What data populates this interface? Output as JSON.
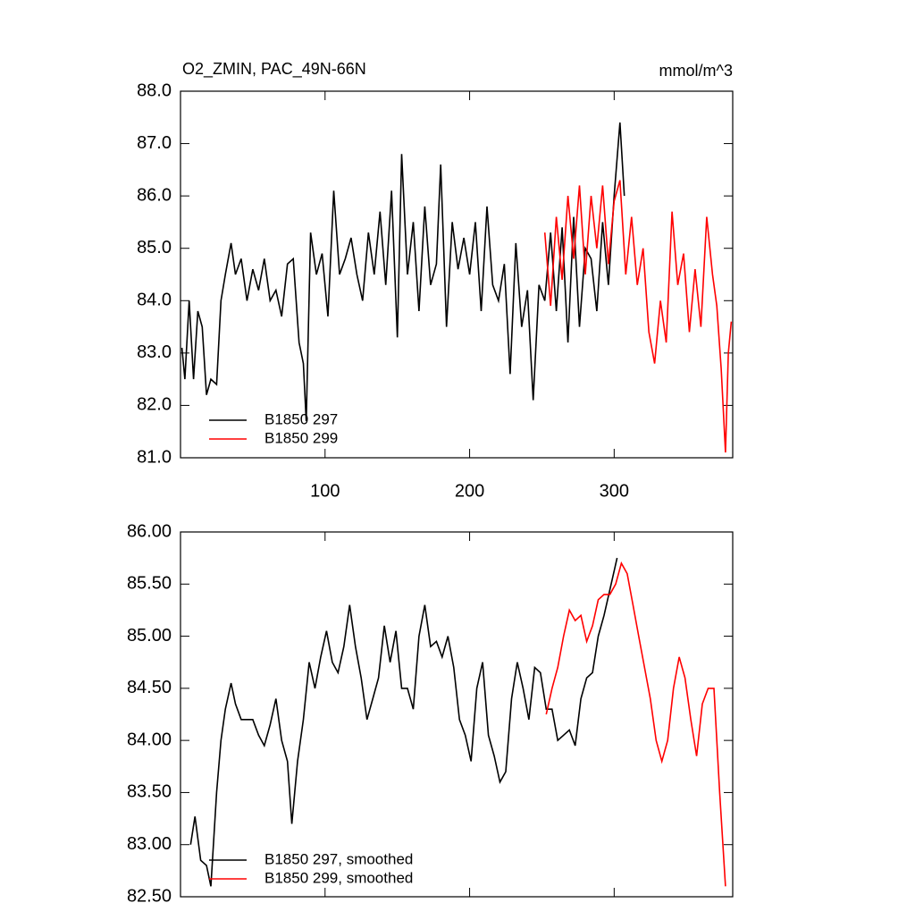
{
  "chart_data": [
    {
      "type": "line",
      "title": "O2_ZMIN, PAC_49N-66N",
      "units": "mmol/m^3",
      "xlim": [
        0,
        382
      ],
      "xticks": [
        100,
        200,
        300
      ],
      "xtick_labels": true,
      "ylim": [
        81,
        88
      ],
      "yticks": [
        {
          "value": 81,
          "label": "81.0"
        },
        {
          "value": 82,
          "label": "82.0"
        },
        {
          "value": 83,
          "label": "83.0"
        },
        {
          "value": 84,
          "label": "84.0"
        },
        {
          "value": 85,
          "label": "85.0"
        },
        {
          "value": 86,
          "label": "86.0"
        },
        {
          "value": 87,
          "label": "87.0"
        },
        {
          "value": 88,
          "label": "88.0"
        }
      ],
      "series": [
        {
          "name": "B1850 297",
          "color": "#000000",
          "x": [
            1,
            3,
            6,
            9,
            12,
            15,
            18,
            21,
            25,
            28,
            31,
            35,
            38,
            42,
            46,
            50,
            54,
            58,
            62,
            66,
            70,
            74,
            78,
            82,
            85,
            87,
            90,
            94,
            98,
            102,
            106,
            110,
            114,
            118,
            122,
            126,
            130,
            134,
            138,
            142,
            146,
            150,
            153,
            157,
            161,
            165,
            169,
            173,
            177,
            180,
            184,
            188,
            192,
            196,
            200,
            204,
            208,
            212,
            216,
            220,
            224,
            228,
            232,
            236,
            240,
            244,
            248,
            252,
            256,
            260,
            264,
            268,
            272,
            276,
            280,
            284,
            288,
            292,
            296,
            300,
            304,
            307
          ],
          "values": [
            83.1,
            82.5,
            84.0,
            82.5,
            83.8,
            83.5,
            82.2,
            82.5,
            82.4,
            84.0,
            84.5,
            85.1,
            84.5,
            84.8,
            84.0,
            84.6,
            84.2,
            84.8,
            84.0,
            84.2,
            83.7,
            84.7,
            84.8,
            83.2,
            82.8,
            81.7,
            85.3,
            84.5,
            84.9,
            83.7,
            86.1,
            84.5,
            84.8,
            85.2,
            84.5,
            84.0,
            85.3,
            84.5,
            85.7,
            84.3,
            86.1,
            83.3,
            86.8,
            84.5,
            85.5,
            83.8,
            85.8,
            84.3,
            84.7,
            86.6,
            83.5,
            85.5,
            84.6,
            85.2,
            84.5,
            85.5,
            83.8,
            85.8,
            84.3,
            84.0,
            84.7,
            82.6,
            85.1,
            83.5,
            84.2,
            82.1,
            84.3,
            84.0,
            85.3,
            83.8,
            85.4,
            83.2,
            85.6,
            83.5,
            85.0,
            84.8,
            83.8,
            85.5,
            84.3,
            86.0,
            87.4,
            86.0
          ]
        },
        {
          "name": "B1850 299",
          "color": "#ff0000",
          "x": [
            252,
            256,
            260,
            264,
            268,
            272,
            276,
            280,
            284,
            288,
            292,
            296,
            300,
            304,
            308,
            312,
            316,
            320,
            324,
            328,
            332,
            336,
            340,
            344,
            348,
            352,
            356,
            360,
            364,
            368,
            371,
            374,
            377,
            379,
            381
          ],
          "values": [
            85.3,
            83.9,
            85.6,
            84.4,
            86.0,
            84.8,
            86.2,
            84.5,
            86.0,
            85.0,
            86.2,
            84.7,
            85.9,
            86.3,
            84.5,
            85.6,
            84.3,
            85.0,
            83.4,
            82.8,
            84.0,
            83.2,
            85.7,
            84.3,
            84.9,
            83.4,
            84.6,
            83.5,
            85.6,
            84.5,
            83.9,
            82.7,
            81.1,
            83.0,
            83.6
          ]
        }
      ]
    },
    {
      "type": "line",
      "xlim": [
        0,
        382
      ],
      "xticks": [
        100,
        200,
        300
      ],
      "xtick_labels": false,
      "ylim": [
        82.5,
        86
      ],
      "yticks": [
        {
          "value": 82.5,
          "label": "82.50"
        },
        {
          "value": 83,
          "label": "83.00"
        },
        {
          "value": 83.5,
          "label": "83.50"
        },
        {
          "value": 84,
          "label": "84.00"
        },
        {
          "value": 84.5,
          "label": "84.50"
        },
        {
          "value": 85,
          "label": "85.00"
        },
        {
          "value": 85.5,
          "label": "85.50"
        },
        {
          "value": 86,
          "label": "86.00"
        }
      ],
      "series": [
        {
          "name": "B1850 297, smoothed",
          "color": "#000000",
          "x": [
            7,
            10,
            14,
            18,
            21,
            25,
            28,
            31,
            35,
            38,
            42,
            46,
            50,
            54,
            58,
            62,
            66,
            70,
            74,
            77,
            81,
            85,
            89,
            93,
            97,
            101,
            105,
            109,
            113,
            117,
            121,
            125,
            129,
            133,
            137,
            141,
            145,
            149,
            153,
            157,
            161,
            165,
            169,
            173,
            177,
            181,
            185,
            189,
            193,
            197,
            201,
            205,
            209,
            213,
            217,
            221,
            225,
            229,
            233,
            237,
            241,
            245,
            249,
            253,
            257,
            261,
            265,
            269,
            273,
            277,
            281,
            285,
            289,
            293,
            302
          ],
          "values": [
            83.0,
            83.27,
            82.85,
            82.8,
            82.6,
            83.5,
            84.0,
            84.3,
            84.55,
            84.35,
            84.2,
            84.2,
            84.2,
            84.05,
            83.95,
            84.15,
            84.4,
            84.0,
            83.8,
            83.2,
            83.8,
            84.2,
            84.75,
            84.5,
            84.8,
            85.05,
            84.75,
            84.65,
            84.9,
            85.3,
            84.9,
            84.6,
            84.2,
            84.4,
            84.6,
            85.1,
            84.75,
            85.05,
            84.5,
            84.5,
            84.3,
            85.0,
            85.3,
            84.9,
            84.95,
            84.8,
            85.0,
            84.7,
            84.2,
            84.05,
            83.8,
            84.5,
            84.75,
            84.05,
            83.85,
            83.6,
            83.7,
            84.4,
            84.75,
            84.5,
            84.2,
            84.7,
            84.65,
            84.3,
            84.3,
            84.0,
            84.05,
            84.1,
            83.95,
            84.4,
            84.6,
            84.65,
            85.0,
            85.2,
            85.75
          ]
        },
        {
          "name": "B1850 299, smoothed",
          "color": "#ff0000",
          "x": [
            253,
            257,
            261,
            265,
            269,
            273,
            277,
            281,
            285,
            289,
            293,
            297,
            301,
            305,
            309,
            313,
            317,
            321,
            325,
            329,
            333,
            337,
            341,
            345,
            349,
            353,
            357,
            361,
            365,
            369,
            373,
            377
          ],
          "values": [
            84.25,
            84.5,
            84.7,
            85.0,
            85.25,
            85.15,
            85.2,
            84.95,
            85.1,
            85.35,
            85.4,
            85.4,
            85.5,
            85.7,
            85.6,
            85.3,
            85.0,
            84.7,
            84.4,
            84.0,
            83.8,
            84.0,
            84.5,
            84.8,
            84.6,
            84.2,
            83.85,
            84.35,
            84.5,
            84.5,
            83.5,
            82.6
          ]
        }
      ]
    }
  ]
}
